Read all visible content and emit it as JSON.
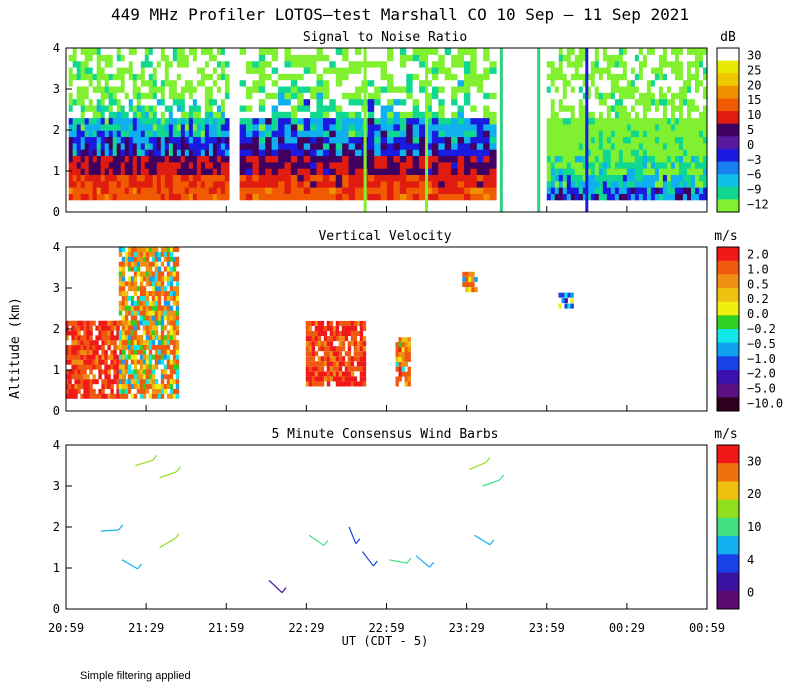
{
  "title": "449 MHz Profiler LOTOS—test Marshall CO 10 Sep — 11 Sep 2021",
  "footnote": "Simple filtering applied",
  "y_axis_label": "Altitude (km)",
  "x_axis_label": "UT  (CDT - 5)",
  "x_ticks": [
    "20:59",
    "21:29",
    "21:59",
    "22:29",
    "22:59",
    "23:29",
    "23:59",
    "00:29",
    "00:59"
  ],
  "y_ticks": [
    "0",
    "1",
    "2",
    "3",
    "4"
  ],
  "colors": {
    "snr_scale": [
      "#ffffff",
      "#e8e800",
      "#f0c800",
      "#f09000",
      "#f05a00",
      "#e01c10",
      "#400060",
      "#5a1aa0",
      "#1a1ae0",
      "#1a80f0",
      "#10c0e8",
      "#10d890",
      "#80f030"
    ],
    "velocity_scale": [
      "#f01818",
      "#f05a10",
      "#f09010",
      "#f0c010",
      "#f0f010",
      "#30d020",
      "#10e8e8",
      "#10a0f0",
      "#1a40e8",
      "#3a10b0",
      "#5a1080",
      "#300020"
    ],
    "wind_scale": [
      "#f01818",
      "#f07010",
      "#f0c010",
      "#90e020",
      "#40e080",
      "#10b0f0",
      "#1a40e8",
      "#3a10a0",
      "#5a0a70"
    ]
  },
  "chart_data": [
    {
      "type": "heatmap",
      "title": "Signal to Noise Ratio",
      "unit": "dB",
      "colorbar_labels": [
        "30",
        "25",
        "20",
        "15",
        "10",
        "5",
        "0",
        "−3",
        "−6",
        "−9",
        "−12"
      ],
      "x_range": [
        "20:59",
        "00:59"
      ],
      "ylim": [
        0,
        4
      ],
      "segments": [
        {
          "start": "21:00",
          "end": "22:00",
          "values_db": [
            [
              12,
              10,
              6,
              0,
              -5,
              -9,
              -12,
              -12
            ],
            [
              12,
              10,
              5,
              -3,
              -6,
              -9,
              -12,
              -12
            ]
          ]
        },
        {
          "start": "22:04",
          "end": "23:40",
          "values_db": [
            [
              12,
              10,
              5,
              0,
              -3,
              -6,
              -9,
              -12
            ],
            [
              12,
              8,
              3,
              -3,
              -6,
              -9,
              -12,
              -12
            ]
          ]
        },
        {
          "start": "23:59",
          "end": "00:59",
          "values_db": [
            [
              -3,
              -6,
              -9,
              -12,
              -12,
              -12,
              -12,
              -12
            ]
          ]
        }
      ]
    },
    {
      "type": "heatmap",
      "title": "Vertical Velocity",
      "unit": "m/s",
      "colorbar_labels": [
        "2.0",
        "1.0",
        "0.5",
        "0.2",
        "0.0",
        "−0.2",
        "−0.5",
        "−1.0",
        "−2.0",
        "−5.0",
        "−10.0"
      ],
      "x_range": [
        "20:59",
        "00:59"
      ],
      "ylim": [
        0,
        4
      ],
      "patches": [
        {
          "time": "21:10",
          "alt_km": [
            0.3,
            2.2
          ],
          "value_ms": 2.0
        },
        {
          "time": "21:30",
          "alt_km": [
            0.3,
            4.0
          ],
          "value_ms": 0.5
        },
        {
          "time": "22:40",
          "alt_km": [
            0.6,
            2.2
          ],
          "value_ms": 2.0
        },
        {
          "time": "23:05",
          "alt_km": [
            0.6,
            1.8
          ],
          "value_ms": 1.0
        },
        {
          "time": "23:30",
          "alt_km": [
            2.9,
            3.4
          ],
          "value_ms": 0.5
        },
        {
          "time": "00:06",
          "alt_km": [
            2.5,
            2.9
          ],
          "value_ms": -1.0
        }
      ]
    },
    {
      "type": "scatter",
      "title": "5 Minute Consensus Wind Barbs",
      "unit": "m/s",
      "colorbar_labels": [
        "30",
        "20",
        "10",
        "4",
        "0"
      ],
      "x_range": [
        "20:59",
        "00:59"
      ],
      "ylim": [
        0,
        4
      ],
      "barbs": [
        {
          "time": "21:25",
          "alt_km": 3.5,
          "speed_ms": 10
        },
        {
          "time": "21:34",
          "alt_km": 3.2,
          "speed_ms": 10
        },
        {
          "time": "21:34",
          "alt_km": 1.5,
          "speed_ms": 12
        },
        {
          "time": "21:20",
          "alt_km": 1.2,
          "speed_ms": 4
        },
        {
          "time": "21:12",
          "alt_km": 1.9,
          "speed_ms": 4
        },
        {
          "time": "22:15",
          "alt_km": 0.7,
          "speed_ms": 1
        },
        {
          "time": "22:30",
          "alt_km": 1.8,
          "speed_ms": 6
        },
        {
          "time": "22:45",
          "alt_km": 2.0,
          "speed_ms": 2
        },
        {
          "time": "22:50",
          "alt_km": 1.4,
          "speed_ms": 2
        },
        {
          "time": "23:00",
          "alt_km": 1.2,
          "speed_ms": 8
        },
        {
          "time": "23:10",
          "alt_km": 1.3,
          "speed_ms": 4
        },
        {
          "time": "23:30",
          "alt_km": 3.4,
          "speed_ms": 10
        },
        {
          "time": "23:35",
          "alt_km": 3.0,
          "speed_ms": 6
        },
        {
          "time": "23:32",
          "alt_km": 1.8,
          "speed_ms": 4
        }
      ]
    }
  ]
}
